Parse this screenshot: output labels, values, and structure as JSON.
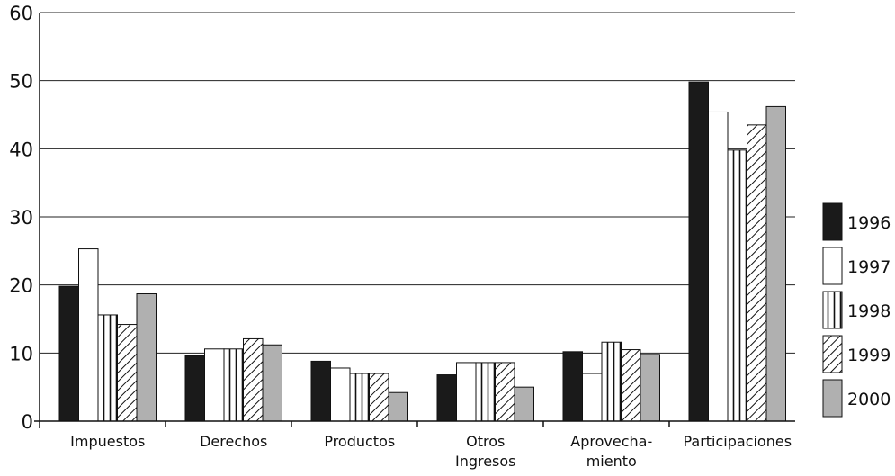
{
  "chart_data": {
    "type": "bar",
    "title": "",
    "xlabel": "",
    "ylabel": "",
    "ylim": [
      0,
      60
    ],
    "yticks": [
      0,
      10,
      20,
      30,
      40,
      50,
      60
    ],
    "grid": true,
    "legend_position": "right",
    "categories": [
      [
        "Impuestos"
      ],
      [
        "Derechos"
      ],
      [
        "Productos"
      ],
      [
        "Otros",
        "Ingresos"
      ],
      [
        "Aprovecha-",
        "miento"
      ],
      [
        "Participaciones"
      ]
    ],
    "series": [
      {
        "name": "1996",
        "pattern": "solid-black",
        "values": [
          19.8,
          9.6,
          8.8,
          6.8,
          10.2,
          49.8
        ]
      },
      {
        "name": "1997",
        "pattern": "white",
        "values": [
          25.3,
          10.6,
          7.8,
          8.6,
          7.0,
          45.4
        ]
      },
      {
        "name": "1998",
        "pattern": "vertical-stripes",
        "values": [
          15.6,
          10.6,
          7.0,
          8.6,
          11.6,
          39.8
        ]
      },
      {
        "name": "1999",
        "pattern": "diagonal-hatch",
        "values": [
          14.2,
          12.1,
          7.0,
          8.6,
          10.5,
          43.5
        ]
      },
      {
        "name": "2000",
        "pattern": "solid-gray",
        "values": [
          18.7,
          11.2,
          4.2,
          5.0,
          9.8,
          46.2
        ]
      }
    ],
    "colors": {
      "black": "#1a1a1a",
      "gray": "#b0b0b0",
      "white": "#ffffff",
      "stroke": "#111111"
    }
  }
}
